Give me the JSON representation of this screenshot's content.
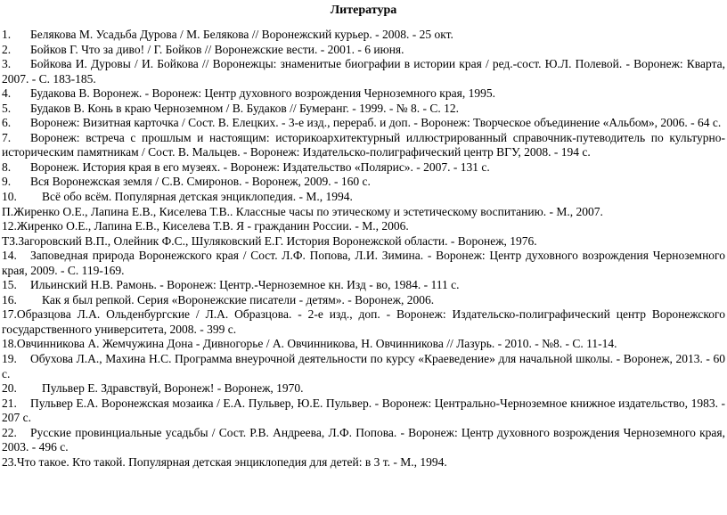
{
  "title": "Литература",
  "items": [
    {
      "num": "1.",
      "style": "tab",
      "text": "Белякова М. Усадьба Дурова / М. Белякова // Воронежский курьер. - 2008. - 25 окт."
    },
    {
      "num": "2.",
      "style": "tab",
      "text": "Бойков Г. Что за диво! / Г. Бойков // Воронежские вести. - 2001. - 6 июня."
    },
    {
      "num": "3.",
      "style": "tab",
      "text": "Бойкова И. Дуровы / И. Бойкова // Воронежцы: знаменитые биографии в истории края / ред.-сост. Ю.Л. Полевой. - Воронеж: Кварта, 2007. - С. 183-185."
    },
    {
      "num": "4.",
      "style": "tab",
      "text": "Будакова В. Воронеж. - Воронеж: Центр духовного возрождения Черноземного края, 1995."
    },
    {
      "num": "5.",
      "style": "tab",
      "text": "Будаков В. Конь в краю Черноземном / В. Будаков // Бумеранг. - 1999. - № 8. - С. 12."
    },
    {
      "num": "6.",
      "style": "tab",
      "text": "Воронеж: Визитная карточка / Сост. В. Елецких. - 3-е изд., перераб. и доп. - Воронеж: Творческое объединение «Альбом», 2006. - 64 с."
    },
    {
      "num": "7.",
      "style": "tab",
      "text": "Воронеж: встреча с прошлым и настоящим: историкоархитектурный иллюстрированный справочник-путеводитель по культурно-историческим памятникам / Сост. В. Мальцев. - Воронеж: Издательско-полиграфический центр ВГУ, 2008. - 194 с."
    },
    {
      "num": "8.",
      "style": "tab",
      "text": "Воронеж. История края в его музеях. - Воронеж: Издательство «Полярис». - 2007. - 131 с."
    },
    {
      "num": "9.",
      "style": "tab",
      "text": "Вся Воронежская земля / С.В. Смиронов. - Воронеж, 2009. - 160 с."
    },
    {
      "num": "10.",
      "style": "wide",
      "text": "Всё обо всём. Популярная детская энциклопедия. - М., 1994."
    },
    {
      "num": "П.",
      "style": "inline",
      "text": "Жиренко О.Е., Лапина Е.В., Киселева Т.В.. Классные часы по этическому и эстетическому воспитанию. - М., 2007."
    },
    {
      "num": "12.",
      "style": "inline",
      "text": "Жиренко О.Е., Лапина Е.В., Киселева Т.В. Я - гражданин России. - М., 2006."
    },
    {
      "num": "ТЗ.",
      "style": "inline",
      "text": "Загоровский В.П., Олейник Ф.С., Шуляковский Е.Г. История Воронежской области. - Воронеж, 1976."
    },
    {
      "num": "14.",
      "style": "tab",
      "text": "Заповедная природа Воронежского края / Сост. Л.Ф. Попова, Л.И. Зимина. - Воронеж: Центр духовного возрождения Черноземного края, 2009. - С. 119-169."
    },
    {
      "num": "15.",
      "style": "tab",
      "text": "Ильинский Н.В. Рамонь. - Воронеж: Центр.-Черноземное кн. Изд - во, 1984. - 111 с."
    },
    {
      "num": "16.",
      "style": "wide",
      "text": "Как я был репкой. Серия «Воронежские писатели - детям». - Воронеж, 2006."
    },
    {
      "num": "17.",
      "style": "inline",
      "text": "Образцова Л.А. Ольденбургские / Л.А. Образцова. - 2-е изд., доп. - Воронеж: Издательско-полиграфический центр Воронежского государственного университета, 2008. - 399 с."
    },
    {
      "num": "18.",
      "style": "inline",
      "text": "Овчинникова А. Жемчужина Дона - Дивногорье / А. Овчинникова, Н. Овчинникова // Лазурь. - 2010. - №8. - С. 11-14."
    },
    {
      "num": "19.",
      "style": "tab",
      "text": "Обухова Л.А., Махина Н.С. Программа внеурочной деятельности по курсу «Краеведение» для начальной школы. - Воронеж, 2013. - 60 с."
    },
    {
      "num": "20.",
      "style": "wide",
      "text": "Пульвер Е. Здравствуй, Воронеж! - Воронеж, 1970."
    },
    {
      "num": "21.",
      "style": "tab",
      "text": "Пульвер Е.А. Воронежская мозаика / Е.А. Пульвер, Ю.Е. Пульвер. - Воронеж: Центрально-Черноземное книжное издательство, 1983. - 207 с."
    },
    {
      "num": "22.",
      "style": "tab",
      "text": "Русские провинциальные усадьбы / Сост. Р.В. Андреева, Л.Ф. Попова. - Воронеж: Центр духовного возрождения Черноземного края, 2003. - 496 с."
    },
    {
      "num": "23.",
      "style": "inline",
      "text": "Что такое. Кто такой. Популярная детская энциклопедия для детей: в 3 т. - М., 1994."
    }
  ]
}
